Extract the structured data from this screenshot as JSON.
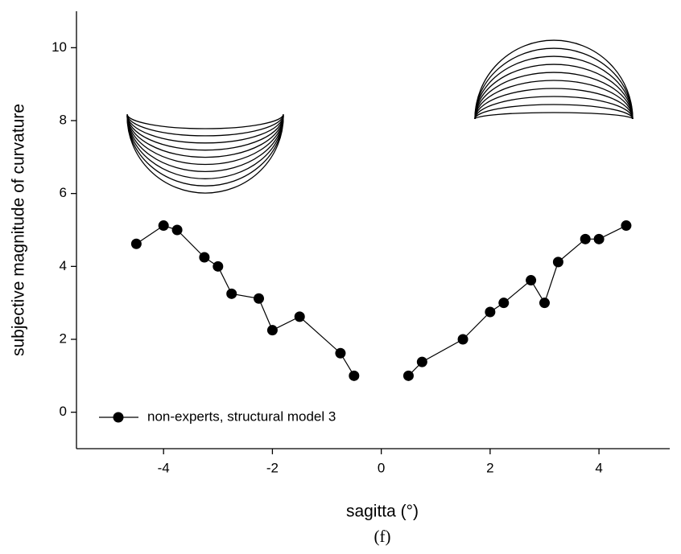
{
  "chart_data": {
    "type": "line",
    "x_label": "sagitta (°)",
    "y_label": "subjective magnitude of curvature",
    "caption": "(f)",
    "x": [
      -4.5,
      -4,
      -3.75,
      -3.25,
      -3,
      -2.75,
      -2.25,
      -2,
      -1.5,
      -0.75,
      -0.5,
      0,
      0.5,
      0.75,
      1.5,
      2,
      2.25,
      2.75,
      3,
      3.25,
      3.75,
      4,
      4.5
    ],
    "series": [
      {
        "name": "non-experts, structural model 3",
        "color": "#000000",
        "values": [
          4.62,
          5.12,
          5.0,
          4.25,
          4.0,
          3.25,
          3.12,
          2.25,
          2.62,
          1.62,
          1.0,
          null,
          1.0,
          1.38,
          2.0,
          2.75,
          3.0,
          3.62,
          3.0,
          4.12,
          4.75,
          4.75,
          5.12
        ]
      }
    ],
    "xlim": [
      -5.6,
      5.3
    ],
    "ylim": [
      -1,
      11
    ],
    "xticks": [
      -4,
      -2,
      0,
      2,
      4
    ],
    "yticks": [
      0,
      2,
      4,
      6,
      8,
      10
    ],
    "legend": "lower left"
  }
}
